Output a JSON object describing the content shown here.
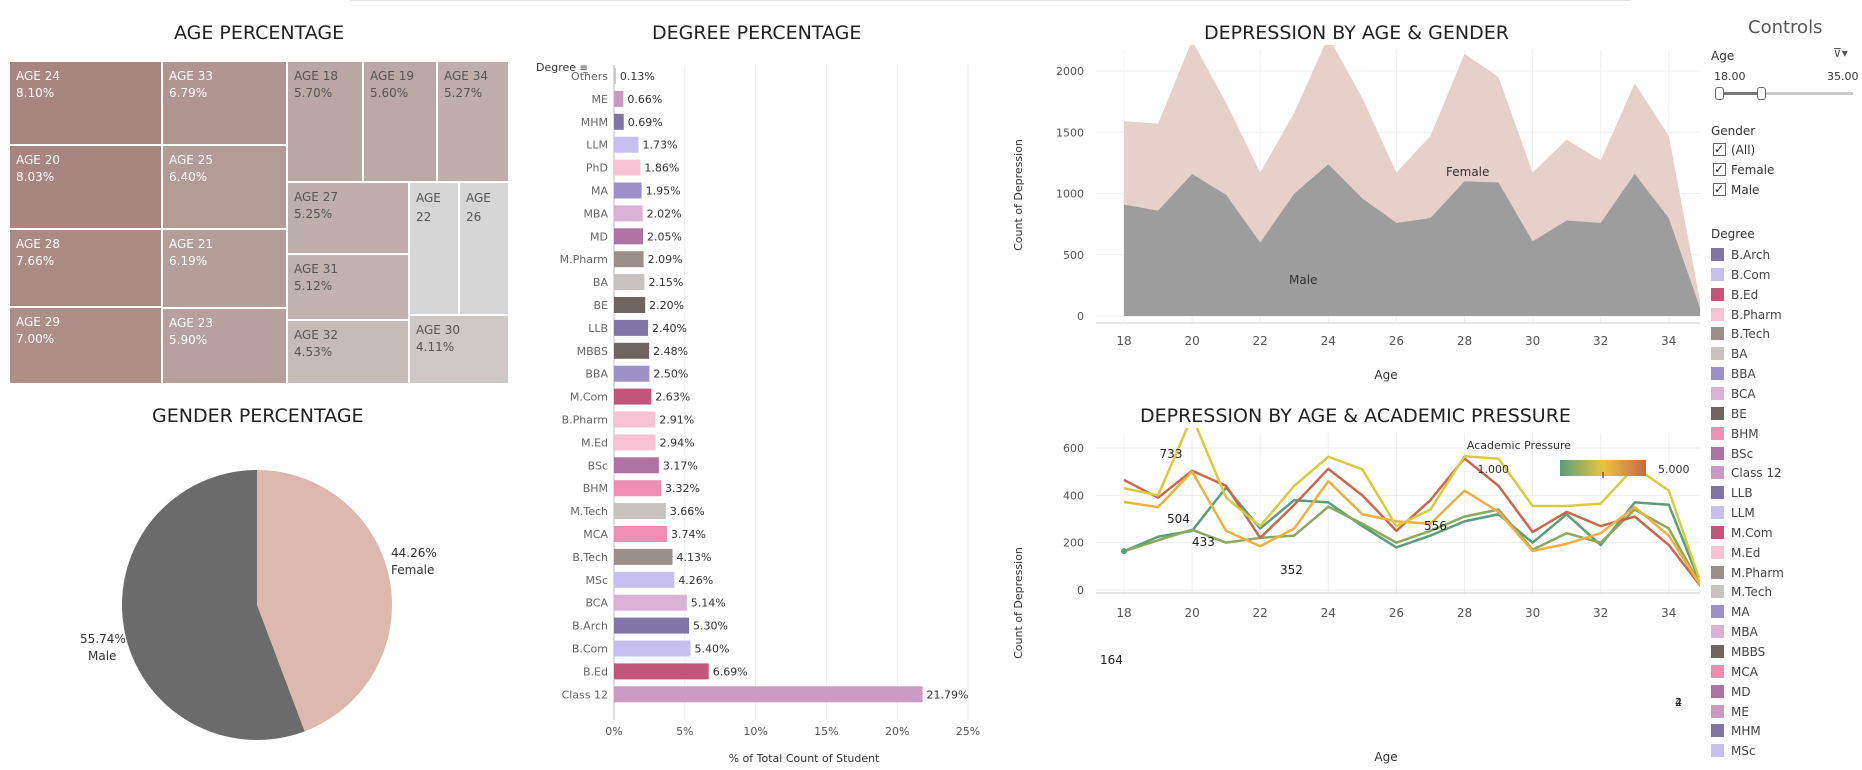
{
  "treemap": {
    "title": "AGE PERCENTAGE",
    "cells": [
      {
        "age": "AGE 24",
        "pct": "8.10%",
        "color": "#a8867f"
      },
      {
        "age": "AGE 20",
        "pct": "8.03%",
        "color": "#a8867f"
      },
      {
        "age": "AGE 28",
        "pct": "7.66%",
        "color": "#aa8a83"
      },
      {
        "age": "AGE 29",
        "pct": "7.00%",
        "color": "#ad8f88"
      },
      {
        "age": "AGE 33",
        "pct": "6.79%",
        "color": "#b09590"
      },
      {
        "age": "AGE 25",
        "pct": "6.40%",
        "color": "#b49b96"
      },
      {
        "age": "AGE 21",
        "pct": "6.19%",
        "color": "#b59d98"
      },
      {
        "age": "AGE 23",
        "pct": "5.90%",
        "color": "#b8a19d"
      },
      {
        "age": "AGE 18",
        "pct": "5.70%",
        "color": "#baa6a2"
      },
      {
        "age": "AGE 19",
        "pct": "5.60%",
        "color": "#bba8a4"
      },
      {
        "age": "AGE 34",
        "pct": "5.27%",
        "color": "#bfaeab"
      },
      {
        "age": "AGE 27",
        "pct": "5.25%",
        "color": "#bfaeab"
      },
      {
        "age": "AGE 31",
        "pct": "5.12%",
        "color": "#c1b2af"
      },
      {
        "age": "AGE 32",
        "pct": "4.53%",
        "color": "#c6bbb9"
      },
      {
        "age": "AGE 30",
        "pct": "4.11%",
        "color": "#cdc7c6"
      },
      {
        "age": "AGE 22",
        "pct": "",
        "color": "#d6d6d6"
      },
      {
        "age": "AGE 26",
        "pct": "",
        "color": "#d6d6d6"
      }
    ]
  },
  "gender_pie": {
    "title": "GENDER PERCENTAGE",
    "slices": [
      {
        "label": "Female",
        "pct_text": "44.26%",
        "value": 44.26,
        "color": "#dcb8ae"
      },
      {
        "label": "Male",
        "pct_text": "55.74%",
        "value": 55.74,
        "color": "#6b6b6b"
      }
    ]
  },
  "degree_chart": {
    "title": "DEGREE PERCENTAGE",
    "header": "Degree",
    "xlabel": "% of Total Count of Student",
    "ticks": [
      "0%",
      "5%",
      "10%",
      "15%",
      "20%",
      "25%"
    ],
    "xlim": [
      0,
      25
    ]
  },
  "area_chart": {
    "title": "DEPRESSION BY AGE & GENDER",
    "xlabel": "Age",
    "ylabel": "Count of Depression",
    "female_label": "Female",
    "male_label": "Male",
    "x_ticks": [
      "18",
      "20",
      "22",
      "24",
      "26",
      "28",
      "30",
      "32",
      "34"
    ],
    "y_ticks": [
      "0",
      "500",
      "1000",
      "1500",
      "2000"
    ]
  },
  "line_chart": {
    "title": "DEPRESSION BY AGE & ACADEMIC PRESSURE",
    "xlabel": "Age",
    "ylabel": "Count of Depression",
    "legend_title": "Academic Pressure",
    "legend_min": "1.000",
    "legend_max": "5.000",
    "x_ticks": [
      "18",
      "20",
      "22",
      "24",
      "26",
      "28",
      "30",
      "32",
      "34"
    ],
    "y_ticks": [
      "0",
      "200",
      "400",
      "600"
    ],
    "annotations": [
      "733",
      "504",
      "433",
      "352",
      "556",
      "164",
      "4",
      "2"
    ]
  },
  "controls": {
    "title": "Controls",
    "age_label": "Age",
    "age_min": "18.00",
    "age_max": "35.00",
    "age_slider_fraction": [
      0.0,
      0.33
    ],
    "gender_label": "Gender",
    "gender_options": [
      "(All)",
      "Female",
      "Male"
    ],
    "degree_label": "Degree",
    "degree_legend": [
      {
        "name": "B.Arch",
        "color": "#8175a8"
      },
      {
        "name": "B.Com",
        "color": "#c7bfee"
      },
      {
        "name": "B.Ed",
        "color": "#c2567a"
      },
      {
        "name": "B.Pharm",
        "color": "#f8c2d5"
      },
      {
        "name": "B.Tech",
        "color": "#9b8f8c"
      },
      {
        "name": "BA",
        "color": "#c8c3c1"
      },
      {
        "name": "BBA",
        "color": "#9c90c8"
      },
      {
        "name": "BCA",
        "color": "#d9b2d6"
      },
      {
        "name": "BE",
        "color": "#6e6461"
      },
      {
        "name": "BHM",
        "color": "#ee8fb2"
      },
      {
        "name": "BSc",
        "color": "#ae72a3"
      },
      {
        "name": "Class 12",
        "color": "#c99ac2"
      },
      {
        "name": "LLB",
        "color": "#8175a8"
      },
      {
        "name": "LLM",
        "color": "#c7bfee"
      },
      {
        "name": "M.Com",
        "color": "#c2567a"
      },
      {
        "name": "M.Ed",
        "color": "#f8c2d5"
      },
      {
        "name": "M.Pharm",
        "color": "#9b8f8c"
      },
      {
        "name": "M.Tech",
        "color": "#c8c3c1"
      },
      {
        "name": "MA",
        "color": "#9c90c8"
      },
      {
        "name": "MBA",
        "color": "#d9b2d6"
      },
      {
        "name": "MBBS",
        "color": "#6e6461"
      },
      {
        "name": "MCA",
        "color": "#ee8fb2"
      },
      {
        "name": "MD",
        "color": "#ae72a3"
      },
      {
        "name": "ME",
        "color": "#c99ac2"
      },
      {
        "name": "MHM",
        "color": "#8175a8"
      },
      {
        "name": "MSc",
        "color": "#c7bfee"
      }
    ]
  },
  "chart_data": [
    {
      "type": "bar",
      "orientation": "horizontal",
      "title": "DEGREE PERCENTAGE",
      "xlabel": "% of Total Count of Student",
      "ylabel": "Degree",
      "xlim": [
        0,
        25
      ],
      "categories": [
        "Others",
        "ME",
        "MHM",
        "LLM",
        "PhD",
        "MA",
        "MBA",
        "MD",
        "M.Pharm",
        "BA",
        "BE",
        "LLB",
        "MBBS",
        "BBA",
        "M.Com",
        "B.Pharm",
        "M.Ed",
        "BSc",
        "BHM",
        "M.Tech",
        "MCA",
        "B.Tech",
        "MSc",
        "BCA",
        "B.Arch",
        "B.Com",
        "B.Ed",
        "Class 12"
      ],
      "values": [
        0.13,
        0.66,
        0.69,
        1.73,
        1.86,
        1.95,
        2.02,
        2.05,
        2.09,
        2.15,
        2.2,
        2.4,
        2.48,
        2.5,
        2.63,
        2.91,
        2.94,
        3.17,
        3.32,
        3.66,
        3.74,
        4.13,
        4.26,
        5.14,
        5.3,
        5.4,
        6.69,
        21.79
      ],
      "labels": [
        "0.13%",
        "0.66%",
        "0.69%",
        "1.73%",
        "1.86%",
        "1.95%",
        "2.02%",
        "2.05%",
        "2.09%",
        "2.15%",
        "2.20%",
        "2.40%",
        "2.48%",
        "2.50%",
        "2.63%",
        "2.91%",
        "2.94%",
        "3.17%",
        "3.32%",
        "3.66%",
        "3.74%",
        "4.13%",
        "4.26%",
        "5.14%",
        "5.30%",
        "5.40%",
        "6.69%",
        "21.79%"
      ],
      "colors": [
        "#c8c3c1",
        "#c99ac2",
        "#8175a8",
        "#c7bfee",
        "#f8c2d5",
        "#9c90c8",
        "#d9b2d6",
        "#ae72a3",
        "#9b8f8c",
        "#c8c3c1",
        "#6e6461",
        "#8175a8",
        "#6e6461",
        "#9c90c8",
        "#c2567a",
        "#f8c2d5",
        "#f8c2d5",
        "#ae72a3",
        "#ee8fb2",
        "#c8c3c1",
        "#ee8fb2",
        "#9b8f8c",
        "#c7bfee",
        "#d9b2d6",
        "#8175a8",
        "#c7bfee",
        "#c2567a",
        "#c99ac2"
      ]
    },
    {
      "type": "area",
      "stacked": true,
      "title": "DEPRESSION BY AGE & GENDER",
      "xlabel": "Age",
      "ylabel": "Count of Depression",
      "xlim": [
        17,
        35.5
      ],
      "ylim": [
        0,
        2400
      ],
      "x": [
        18,
        19,
        20,
        21,
        22,
        23,
        24,
        25,
        26,
        27,
        28,
        29,
        30,
        31,
        32,
        33,
        34,
        35
      ],
      "series": [
        {
          "name": "Male",
          "color": "#9d9d9d",
          "values": [
            910,
            860,
            1160,
            990,
            600,
            1000,
            1240,
            960,
            760,
            800,
            1100,
            1090,
            610,
            780,
            760,
            1160,
            800,
            0
          ]
        },
        {
          "name": "Female",
          "color": "#e7d0c9",
          "values": [
            680,
            710,
            1090,
            750,
            570,
            660,
            1040,
            820,
            410,
            670,
            1040,
            860,
            560,
            660,
            510,
            740,
            670,
            0
          ]
        }
      ]
    },
    {
      "type": "line",
      "title": "DEPRESSION BY AGE & ACADEMIC PRESSURE",
      "xlabel": "Age",
      "ylabel": "Count of Depression",
      "xlim": [
        17,
        35.5
      ],
      "ylim": [
        0,
        750
      ],
      "x": [
        18,
        19,
        20,
        21,
        22,
        23,
        24,
        25,
        26,
        27,
        28,
        29,
        30,
        31,
        32,
        33,
        34,
        35
      ],
      "series": [
        {
          "color": "#5a9e7a",
          "values": [
            164,
            225,
            250,
            433,
            260,
            380,
            370,
            270,
            180,
            230,
            290,
            320,
            200,
            320,
            190,
            370,
            360,
            2
          ]
        },
        {
          "color": "#8aa85e",
          "values": [
            164,
            210,
            255,
            200,
            220,
            230,
            352,
            280,
            200,
            250,
            310,
            340,
            170,
            240,
            200,
            340,
            260,
            2
          ]
        },
        {
          "color": "#c8684a",
          "values": [
            465,
            390,
            504,
            440,
            220,
            360,
            512,
            400,
            250,
            380,
            556,
            440,
            245,
            330,
            270,
            310,
            190,
            4
          ]
        },
        {
          "color": "#f0b040",
          "values": [
            372,
            350,
            500,
            250,
            185,
            260,
            460,
            320,
            290,
            280,
            420,
            330,
            165,
            195,
            240,
            350,
            230,
            4
          ]
        },
        {
          "color": "#d8cc3c",
          "values": [
            430,
            400,
            733,
            390,
            270,
            440,
            563,
            510,
            270,
            340,
            565,
            555,
            355,
            355,
            365,
            520,
            420,
            4
          ]
        }
      ]
    }
  ]
}
